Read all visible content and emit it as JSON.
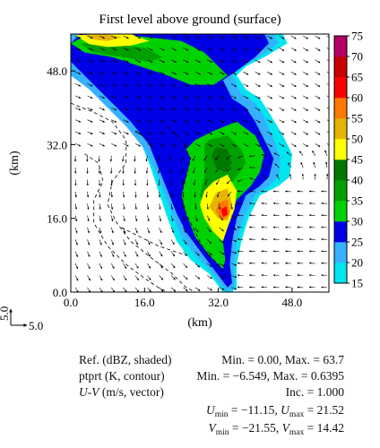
{
  "chart_data": {
    "type": "heatmap",
    "title": "First level above ground (surface)",
    "xlabel": "(km)",
    "ylabel": "(km)",
    "xlim": [
      0,
      56
    ],
    "ylim": [
      0,
      56
    ],
    "x_ticks": [
      "0.0",
      "16.0",
      "32.0",
      "48.0"
    ],
    "y_ticks": [
      "0.0",
      "16.0",
      "32.0",
      "48.0"
    ],
    "colorbar": {
      "ticks": [
        "15",
        "20",
        "25",
        "30",
        "35",
        "40",
        "45",
        "50",
        "55",
        "60",
        "65",
        "70",
        "75"
      ],
      "colors": [
        "#00e5ee",
        "#36b1ff",
        "#0000e6",
        "#00d200",
        "#00a000",
        "#007800",
        "#ffff00",
        "#e6b400",
        "#ff7800",
        "#ff0000",
        "#c80000",
        "#b40064",
        "#ff00ff"
      ]
    },
    "vector_reference": {
      "u_label": "5.0",
      "v_label": "5.0"
    },
    "summary": {
      "ref_label": "Ref. (dBZ, shaded)",
      "ref_minmax": "Min. = 0.00, Max. = 63.7",
      "ptprt_label": "ptprt (K, contour)",
      "ptprt_minmax": "Min. = −6.549, Max. = 0.6395",
      "uv_label_prefix": "U-V",
      "uv_label_suffix": " (m/s, vector)",
      "inc": "Inc. = 1.000",
      "u_min": "−11.15",
      "u_max": "21.52",
      "v_min": "−21.55",
      "v_max": "14.42"
    }
  }
}
